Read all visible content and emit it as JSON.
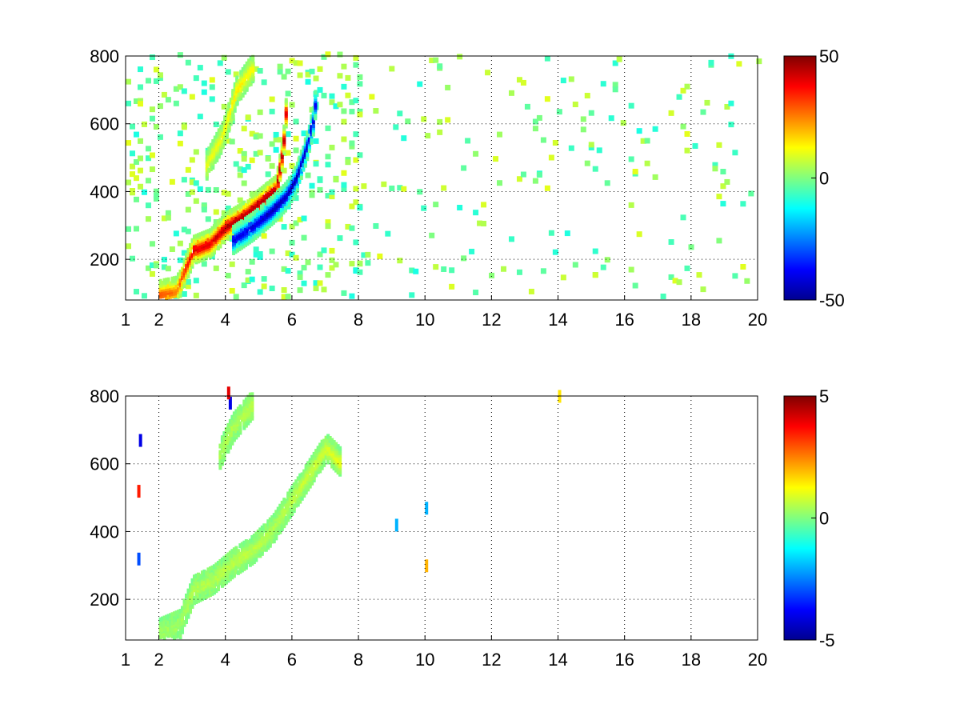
{
  "figure": {
    "background": "#ffffff"
  },
  "chart_data": [
    {
      "type": "heatmap",
      "title": "",
      "xlabel": "",
      "ylabel": "",
      "xlim": [
        1,
        20
      ],
      "ylim": [
        80,
        800
      ],
      "x_ticks": [
        1,
        2,
        4,
        6,
        8,
        10,
        12,
        14,
        16,
        18,
        20
      ],
      "y_ticks": [
        200,
        400,
        600,
        800
      ],
      "grid": true,
      "colormap": "jet",
      "colorbar": {
        "min": -50,
        "max": 50,
        "ticks": [
          50,
          0,
          -50
        ]
      },
      "features": [
        {
          "name_hint": "positive-ridge",
          "points": [
            [
              2.0,
              90,
              30
            ],
            [
              2.5,
              100,
              25
            ],
            [
              3.0,
              220,
              40
            ],
            [
              3.5,
              240,
              40
            ],
            [
              4.0,
              290,
              45
            ],
            [
              4.5,
              320,
              45
            ],
            [
              5.0,
              360,
              45
            ],
            [
              5.5,
              400,
              45
            ],
            [
              5.7,
              520,
              45
            ],
            [
              5.8,
              650,
              40
            ]
          ]
        },
        {
          "name_hint": "negative-ridge",
          "points": [
            [
              4.2,
              250,
              -40
            ],
            [
              4.8,
              290,
              -40
            ],
            [
              5.4,
              340,
              -45
            ],
            [
              5.8,
              380,
              -45
            ],
            [
              6.1,
              430,
              -45
            ],
            [
              6.4,
              520,
              -45
            ],
            [
              6.6,
              600,
              -40
            ],
            [
              6.7,
              680,
              -35
            ]
          ]
        },
        {
          "name_hint": "upper-branch",
          "points": [
            [
              3.4,
              470,
              10
            ],
            [
              3.9,
              560,
              12
            ],
            [
              4.3,
              690,
              15
            ],
            [
              4.8,
              760,
              12
            ]
          ]
        }
      ],
      "noise": {
        "x_range": [
          1,
          20
        ],
        "value_range": [
          -10,
          10
        ],
        "density": "sparse"
      }
    },
    {
      "type": "heatmap",
      "title": "",
      "xlabel": "",
      "ylabel": "",
      "xlim": [
        1,
        20
      ],
      "ylim": [
        80,
        800
      ],
      "x_ticks": [
        1,
        2,
        4,
        6,
        8,
        10,
        12,
        14,
        16,
        18,
        20
      ],
      "y_ticks": [
        200,
        400,
        600,
        800
      ],
      "grid": true,
      "colormap": "jet",
      "colorbar": {
        "min": -5,
        "max": 5,
        "ticks": [
          5,
          0,
          -5
        ]
      },
      "features": [
        {
          "name_hint": "main-band",
          "points": [
            [
              2.0,
              95,
              0.3
            ],
            [
              2.6,
              120,
              0.3
            ],
            [
              3.0,
              220,
              0.5
            ],
            [
              3.6,
              250,
              0.5
            ],
            [
              4.2,
              300,
              0.6
            ],
            [
              4.8,
              340,
              0.6
            ],
            [
              5.4,
              400,
              0.5
            ],
            [
              5.8,
              460,
              0.5
            ],
            [
              6.2,
              520,
              0.7
            ],
            [
              6.6,
              580,
              0.8
            ],
            [
              7.0,
              640,
              0.8
            ],
            [
              7.4,
              600,
              1.0
            ]
          ]
        },
        {
          "name_hint": "upper-branch",
          "points": [
            [
              3.8,
              620,
              0.4
            ],
            [
              4.2,
              700,
              0.5
            ],
            [
              4.8,
              770,
              0.6
            ]
          ]
        }
      ],
      "outliers": [
        [
          1.35,
          500,
          3.5
        ],
        [
          1.4,
          650,
          -4
        ],
        [
          1.35,
          300,
          -3
        ],
        [
          9.1,
          400,
          -2
        ],
        [
          10.0,
          450,
          -2
        ],
        [
          10.0,
          280,
          2
        ],
        [
          14.0,
          780,
          1.5
        ],
        [
          4.1,
          760,
          -4
        ],
        [
          4.05,
          790,
          4
        ]
      ]
    }
  ]
}
